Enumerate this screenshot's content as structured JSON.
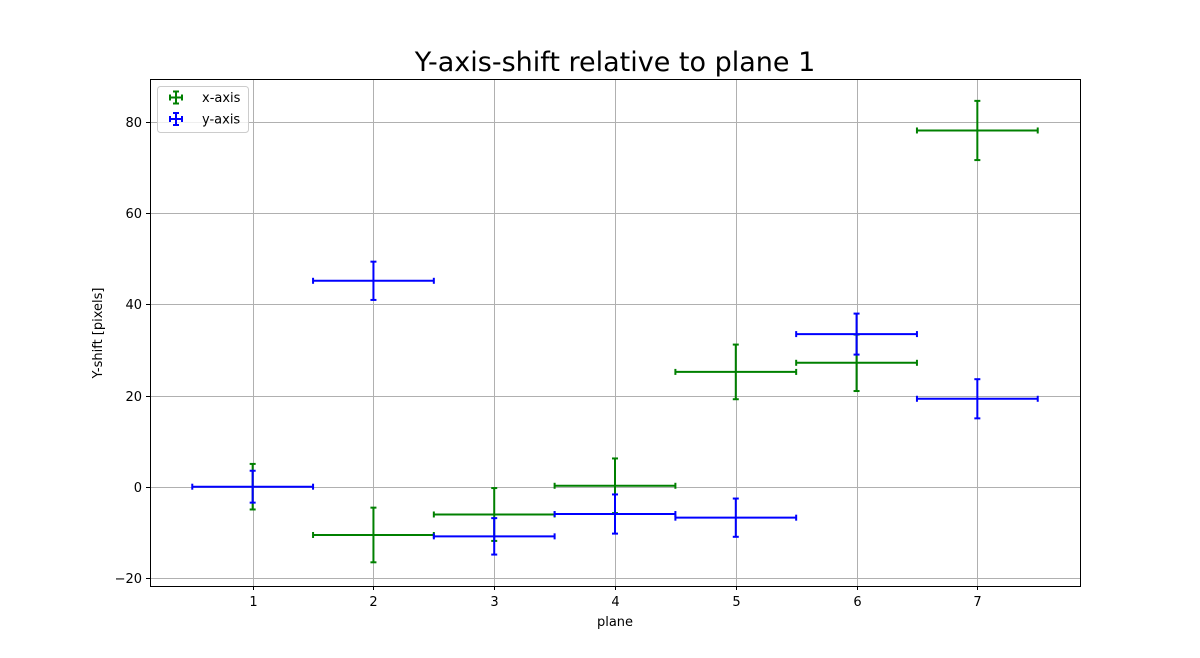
{
  "chart_data": {
    "type": "scatter",
    "title": "Y-axis-shift relative to plane 1",
    "xlabel": "plane",
    "ylabel": "Y-shift [pixels]",
    "xlim": [
      0.15,
      7.85
    ],
    "ylim": [
      -21.8,
      89.5
    ],
    "xticks": [
      1,
      2,
      3,
      4,
      5,
      6,
      7
    ],
    "yticks": [
      -20,
      0,
      20,
      40,
      60,
      80
    ],
    "grid": true,
    "legend_position": "top-left",
    "series": [
      {
        "name": "x-axis",
        "color": "#008000",
        "points": [
          {
            "x": 1,
            "y": 0.0,
            "xerr": 0,
            "yerr": 5.0
          },
          {
            "x": 2,
            "y": -10.6,
            "xerr": 0.5,
            "yerr": 6.0
          },
          {
            "x": 3,
            "y": -6.1,
            "xerr": 0.5,
            "yerr": 5.8
          },
          {
            "x": 4,
            "y": 0.2,
            "xerr": 0.5,
            "yerr": 6.0
          },
          {
            "x": 5,
            "y": 25.2,
            "xerr": 0.5,
            "yerr": 6.0
          },
          {
            "x": 6,
            "y": 27.2,
            "xerr": 0.5,
            "yerr": 6.2
          },
          {
            "x": 7,
            "y": 78.2,
            "xerr": 0.5,
            "yerr": 6.5
          }
        ]
      },
      {
        "name": "y-axis",
        "color": "#0000ff",
        "points": [
          {
            "x": 1,
            "y": 0.0,
            "xerr": 0.5,
            "yerr": 3.5
          },
          {
            "x": 2,
            "y": 45.2,
            "xerr": 0.5,
            "yerr": 4.2
          },
          {
            "x": 3,
            "y": -10.9,
            "xerr": 0.5,
            "yerr": 4.0
          },
          {
            "x": 4,
            "y": -6.0,
            "xerr": 0.5,
            "yerr": 4.3
          },
          {
            "x": 5,
            "y": -6.8,
            "xerr": 0.5,
            "yerr": 4.2
          },
          {
            "x": 6,
            "y": 33.5,
            "xerr": 0.5,
            "yerr": 4.5
          },
          {
            "x": 7,
            "y": 19.3,
            "xerr": 0.5,
            "yerr": 4.3
          }
        ]
      }
    ]
  }
}
